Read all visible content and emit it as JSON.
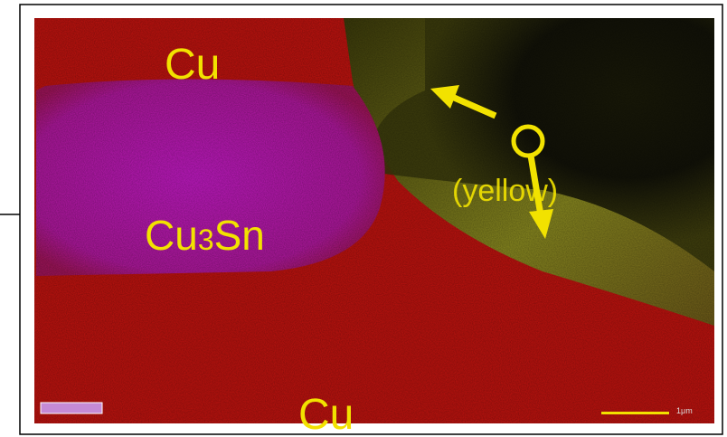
{
  "labels": {
    "cu_top": "Cu",
    "cu3sn": [
      "Cu",
      "3",
      "Sn"
    ],
    "yellow": "(yellow)",
    "cu_bottom": "Cu"
  },
  "scale_bar": "1μm"
}
